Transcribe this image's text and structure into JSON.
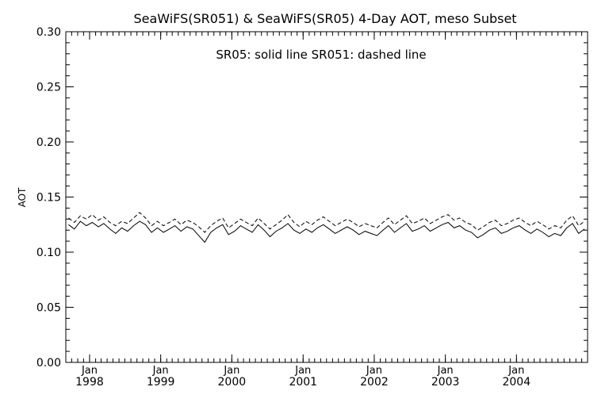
{
  "chart_data": {
    "type": "line",
    "title": "SeaWiFS(SR051) & SeaWiFS(SR05) 4-Day AOT, meso Subset",
    "subtitle": "",
    "annotation": "SR05: solid line   SR051: dashed line",
    "ylabel": "AOT",
    "xlabel": "",
    "ylim": [
      0.0,
      0.3
    ],
    "xlim": [
      "1997-09-01",
      "2004-12-31"
    ],
    "y_ticks": [
      "0.00",
      "0.05",
      "0.10",
      "0.15",
      "0.20",
      "0.25",
      "0.30"
    ],
    "x_ticks": [
      {
        "month": "Jan",
        "year": "1998",
        "date": "1998-01-01"
      },
      {
        "month": "Jan",
        "year": "1999",
        "date": "1999-01-01"
      },
      {
        "month": "Jan",
        "year": "2000",
        "date": "2000-01-01"
      },
      {
        "month": "Jan",
        "year": "2001",
        "date": "2001-01-01"
      },
      {
        "month": "Jan",
        "year": "2002",
        "date": "2002-01-01"
      },
      {
        "month": "Jan",
        "year": "2003",
        "date": "2003-01-01"
      },
      {
        "month": "Jan",
        "year": "2004",
        "date": "2004-01-01"
      }
    ],
    "grid": false,
    "series": [
      {
        "name": "SR05",
        "style": "solid",
        "color": "#000000",
        "x": [
          "1997-09-15",
          "1997-10-15",
          "1997-11-15",
          "1997-12-15",
          "1998-01-15",
          "1998-02-15",
          "1998-03-15",
          "1998-04-15",
          "1998-05-15",
          "1998-06-15",
          "1998-07-15",
          "1998-08-15",
          "1998-09-15",
          "1998-10-15",
          "1998-11-15",
          "1998-12-15",
          "1999-01-15",
          "1999-02-15",
          "1999-03-15",
          "1999-04-15",
          "1999-05-15",
          "1999-06-15",
          "1999-07-15",
          "1999-08-15",
          "1999-09-15",
          "1999-10-15",
          "1999-11-15",
          "1999-12-15",
          "2000-01-15",
          "2000-02-15",
          "2000-03-15",
          "2000-04-15",
          "2000-05-15",
          "2000-06-15",
          "2000-07-15",
          "2000-08-15",
          "2000-09-15",
          "2000-10-15",
          "2000-11-15",
          "2000-12-15",
          "2001-01-15",
          "2001-02-15",
          "2001-03-15",
          "2001-04-15",
          "2001-05-15",
          "2001-06-15",
          "2001-07-15",
          "2001-08-15",
          "2001-09-15",
          "2001-10-15",
          "2001-11-15",
          "2001-12-15",
          "2002-01-15",
          "2002-02-15",
          "2002-03-15",
          "2002-04-15",
          "2002-05-15",
          "2002-06-15",
          "2002-07-15",
          "2002-08-15",
          "2002-09-15",
          "2002-10-15",
          "2002-11-15",
          "2002-12-15",
          "2003-01-15",
          "2003-02-15",
          "2003-03-15",
          "2003-04-15",
          "2003-05-15",
          "2003-06-15",
          "2003-07-15",
          "2003-08-15",
          "2003-09-15",
          "2003-10-15",
          "2003-11-15",
          "2003-12-15",
          "2004-01-15",
          "2004-02-15",
          "2004-03-15",
          "2004-04-15",
          "2004-05-15",
          "2004-06-15",
          "2004-07-15",
          "2004-08-15",
          "2004-09-15",
          "2004-10-15",
          "2004-11-15",
          "2004-12-15"
        ],
        "y": [
          0.125,
          0.121,
          0.128,
          0.124,
          0.127,
          0.123,
          0.126,
          0.121,
          0.117,
          0.122,
          0.119,
          0.124,
          0.128,
          0.125,
          0.118,
          0.122,
          0.118,
          0.121,
          0.124,
          0.119,
          0.123,
          0.121,
          0.115,
          0.109,
          0.118,
          0.122,
          0.125,
          0.116,
          0.119,
          0.124,
          0.121,
          0.118,
          0.125,
          0.12,
          0.114,
          0.119,
          0.122,
          0.126,
          0.12,
          0.117,
          0.121,
          0.118,
          0.122,
          0.125,
          0.121,
          0.117,
          0.12,
          0.123,
          0.12,
          0.116,
          0.119,
          0.117,
          0.115,
          0.12,
          0.124,
          0.118,
          0.122,
          0.126,
          0.119,
          0.121,
          0.124,
          0.119,
          0.122,
          0.125,
          0.127,
          0.122,
          0.124,
          0.12,
          0.118,
          0.113,
          0.116,
          0.12,
          0.122,
          0.117,
          0.119,
          0.122,
          0.124,
          0.12,
          0.117,
          0.121,
          0.118,
          0.114,
          0.117,
          0.115,
          0.122,
          0.126,
          0.117,
          0.121
        ]
      },
      {
        "name": "SR051",
        "style": "dashed",
        "color": "#000000",
        "x": [
          "1997-09-15",
          "1997-10-15",
          "1997-11-15",
          "1997-12-15",
          "1998-01-15",
          "1998-02-15",
          "1998-03-15",
          "1998-04-15",
          "1998-05-15",
          "1998-06-15",
          "1998-07-15",
          "1998-08-15",
          "1998-09-15",
          "1998-10-15",
          "1998-11-15",
          "1998-12-15",
          "1999-01-15",
          "1999-02-15",
          "1999-03-15",
          "1999-04-15",
          "1999-05-15",
          "1999-06-15",
          "1999-07-15",
          "1999-08-15",
          "1999-09-15",
          "1999-10-15",
          "1999-11-15",
          "1999-12-15",
          "2000-01-15",
          "2000-02-15",
          "2000-03-15",
          "2000-04-15",
          "2000-05-15",
          "2000-06-15",
          "2000-07-15",
          "2000-08-15",
          "2000-09-15",
          "2000-10-15",
          "2000-11-15",
          "2000-12-15",
          "2001-01-15",
          "2001-02-15",
          "2001-03-15",
          "2001-04-15",
          "2001-05-15",
          "2001-06-15",
          "2001-07-15",
          "2001-08-15",
          "2001-09-15",
          "2001-10-15",
          "2001-11-15",
          "2001-12-15",
          "2002-01-15",
          "2002-02-15",
          "2002-03-15",
          "2002-04-15",
          "2002-05-15",
          "2002-06-15",
          "2002-07-15",
          "2002-08-15",
          "2002-09-15",
          "2002-10-15",
          "2002-11-15",
          "2002-12-15",
          "2003-01-15",
          "2003-02-15",
          "2003-03-15",
          "2003-04-15",
          "2003-05-15",
          "2003-06-15",
          "2003-07-15",
          "2003-08-15",
          "2003-09-15",
          "2003-10-15",
          "2003-11-15",
          "2003-12-15",
          "2004-01-15",
          "2004-02-15",
          "2004-03-15",
          "2004-04-15",
          "2004-05-15",
          "2004-06-15",
          "2004-07-15",
          "2004-08-15",
          "2004-09-15",
          "2004-10-15",
          "2004-11-15",
          "2004-12-15"
        ],
        "y": [
          0.131,
          0.127,
          0.133,
          0.13,
          0.134,
          0.129,
          0.132,
          0.127,
          0.124,
          0.128,
          0.126,
          0.131,
          0.136,
          0.131,
          0.124,
          0.128,
          0.124,
          0.127,
          0.13,
          0.125,
          0.129,
          0.127,
          0.123,
          0.118,
          0.124,
          0.128,
          0.131,
          0.122,
          0.126,
          0.13,
          0.127,
          0.124,
          0.131,
          0.126,
          0.121,
          0.125,
          0.129,
          0.134,
          0.127,
          0.123,
          0.128,
          0.125,
          0.129,
          0.132,
          0.128,
          0.124,
          0.127,
          0.13,
          0.127,
          0.123,
          0.126,
          0.124,
          0.122,
          0.127,
          0.131,
          0.125,
          0.129,
          0.133,
          0.126,
          0.128,
          0.131,
          0.126,
          0.129,
          0.132,
          0.134,
          0.129,
          0.131,
          0.127,
          0.125,
          0.12,
          0.123,
          0.127,
          0.129,
          0.124,
          0.126,
          0.129,
          0.131,
          0.127,
          0.124,
          0.128,
          0.125,
          0.121,
          0.124,
          0.122,
          0.129,
          0.133,
          0.124,
          0.128
        ]
      }
    ]
  }
}
